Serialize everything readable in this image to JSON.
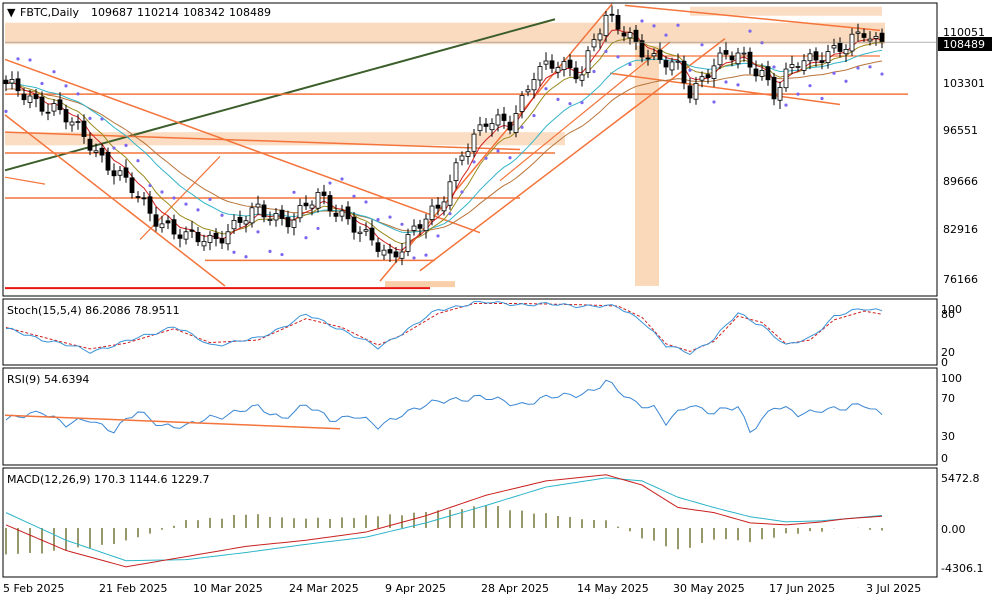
{
  "header": {
    "symbol": "FBTC,Daily",
    "open": "109687",
    "high": "110214",
    "low": "108342",
    "close": "108489"
  },
  "price_axis": {
    "ticks": [
      "110051",
      "103301",
      "96551",
      "89666",
      "82916",
      "76166"
    ],
    "current": "108489"
  },
  "stoch_panel": {
    "label": "Stoch(15,5,4) 86.2086 78.9511",
    "ticks": [
      "100",
      "80",
      "20",
      "0"
    ]
  },
  "rsi_panel": {
    "label": "RSI(9) 54.6394",
    "ticks": [
      "100",
      "70",
      "30",
      "0"
    ]
  },
  "macd_panel": {
    "label": "MACD(12,26,9) 170.3 1144.6 1229.7",
    "ticks": [
      "5472.8",
      "0.00",
      "-4306.1"
    ]
  },
  "time_axis": {
    "labels": [
      "5 Feb 2025",
      "21 Feb 2025",
      "10 Mar 2025",
      "24 Mar 2025",
      "9 Apr 2025",
      "28 Apr 2025",
      "14 May 2025",
      "30 May 2025",
      "17 Jun 2025",
      "3 Jul 2025"
    ]
  },
  "colors": {
    "bull": "#ffffff",
    "bear": "#000000",
    "zone": "#f9cfa9",
    "trend": "#f4743b",
    "red_trend": "#e8140f",
    "green_trend": "#3b5e2b",
    "psar": "#7b68ee",
    "ma_fast": "#d0201f",
    "ma_mid": "#9c8a1c",
    "ma_slow": "#b8743a",
    "ma_cyan": "#35b5c8",
    "stoch_main": "#3a93d8",
    "stoch_signal": "#d0201f",
    "rsi": "#3a86d3",
    "macd_line": "#c8201f",
    "macd_signal": "#2cb4c8",
    "macd_hist": "#6b6b2a"
  },
  "chart_data": [
    {
      "type": "candlestick",
      "title": "FBTC,Daily",
      "ylim": [
        72000,
        114000
      ],
      "anchors": [
        [
          0,
          102000
        ],
        [
          8,
          99000
        ],
        [
          14,
          94000
        ],
        [
          20,
          88000
        ],
        [
          24,
          84000
        ],
        [
          30,
          80000
        ],
        [
          34,
          80000
        ],
        [
          42,
          84000
        ],
        [
          48,
          83000
        ],
        [
          52,
          86000
        ],
        [
          56,
          84000
        ],
        [
          60,
          80000
        ],
        [
          64,
          77500
        ],
        [
          68,
          81500
        ],
        [
          72,
          84000
        ],
        [
          76,
          93000
        ],
        [
          80,
          96500
        ],
        [
          84,
          97000
        ],
        [
          88,
          104000
        ],
        [
          92,
          105000
        ],
        [
          96,
          104500
        ],
        [
          98,
          109000
        ],
        [
          100,
          111500
        ],
        [
          104,
          109500
        ],
        [
          108,
          106000
        ],
        [
          112,
          104500
        ],
        [
          114,
          101500
        ],
        [
          118,
          105500
        ],
        [
          122,
          106500
        ],
        [
          126,
          104500
        ],
        [
          128,
          101000
        ],
        [
          132,
          105500
        ],
        [
          136,
          107000
        ],
        [
          140,
          107500
        ],
        [
          143,
          110000
        ],
        [
          146,
          108489
        ]
      ]
    },
    {
      "type": "line",
      "title": "Stoch(15,5,4)",
      "ylim": [
        0,
        100
      ],
      "series": [
        {
          "name": "main",
          "anchors": [
            [
              0,
              55
            ],
            [
              8,
              35
            ],
            [
              14,
              20
            ],
            [
              20,
              35
            ],
            [
              28,
              60
            ],
            [
              34,
              30
            ],
            [
              42,
              40
            ],
            [
              50,
              78
            ],
            [
              56,
              55
            ],
            [
              62,
              25
            ],
            [
              66,
              50
            ],
            [
              72,
              85
            ],
            [
              78,
              98
            ],
            [
              86,
              95
            ],
            [
              96,
              93
            ],
            [
              102,
              90
            ],
            [
              106,
              70
            ],
            [
              110,
              28
            ],
            [
              114,
              18
            ],
            [
              118,
              40
            ],
            [
              122,
              80
            ],
            [
              126,
              62
            ],
            [
              130,
              28
            ],
            [
              134,
              42
            ],
            [
              138,
              75
            ],
            [
              143,
              88
            ],
            [
              146,
              86.2
            ]
          ]
        },
        {
          "name": "signal",
          "anchors": [
            [
              0,
              58
            ],
            [
              8,
              38
            ],
            [
              14,
              24
            ],
            [
              20,
              33
            ],
            [
              28,
              56
            ],
            [
              34,
              34
            ],
            [
              42,
              38
            ],
            [
              50,
              72
            ],
            [
              56,
              58
            ],
            [
              62,
              30
            ],
            [
              66,
              46
            ],
            [
              72,
              80
            ],
            [
              78,
              96
            ],
            [
              86,
              96
            ],
            [
              96,
              94
            ],
            [
              102,
              92
            ],
            [
              106,
              74
            ],
            [
              110,
              32
            ],
            [
              114,
              20
            ],
            [
              118,
              36
            ],
            [
              122,
              76
            ],
            [
              126,
              66
            ],
            [
              130,
              32
            ],
            [
              134,
              38
            ],
            [
              138,
              70
            ],
            [
              143,
              84
            ],
            [
              146,
              78.95
            ]
          ]
        }
      ]
    },
    {
      "type": "line",
      "title": "RSI(9)",
      "ylim": [
        0,
        100
      ],
      "series": [
        {
          "name": "RSI",
          "anchors": [
            [
              0,
              45
            ],
            [
              6,
              58
            ],
            [
              10,
              40
            ],
            [
              14,
              48
            ],
            [
              18,
              35
            ],
            [
              22,
              55
            ],
            [
              26,
              42
            ],
            [
              30,
              38
            ],
            [
              34,
              50
            ],
            [
              38,
              55
            ],
            [
              42,
              60
            ],
            [
              46,
              50
            ],
            [
              50,
              62
            ],
            [
              54,
              48
            ],
            [
              58,
              52
            ],
            [
              62,
              38
            ],
            [
              66,
              55
            ],
            [
              70,
              62
            ],
            [
              74,
              70
            ],
            [
              78,
              72
            ],
            [
              82,
              68
            ],
            [
              86,
              65
            ],
            [
              90,
              70
            ],
            [
              94,
              75
            ],
            [
              98,
              80
            ],
            [
              100,
              88
            ],
            [
              104,
              70
            ],
            [
              108,
              60
            ],
            [
              110,
              42
            ],
            [
              114,
              65
            ],
            [
              118,
              55
            ],
            [
              122,
              60
            ],
            [
              124,
              35
            ],
            [
              128,
              62
            ],
            [
              132,
              52
            ],
            [
              136,
              60
            ],
            [
              140,
              58
            ],
            [
              143,
              64
            ],
            [
              146,
              54.6
            ]
          ]
        }
      ]
    },
    {
      "type": "bar",
      "title": "MACD(12,26,9)",
      "ylim": [
        -4306.1,
        5472.8
      ],
      "series": [
        {
          "name": "macd",
          "anchors": [
            [
              0,
              300
            ],
            [
              10,
              -2200
            ],
            [
              20,
              -3800
            ],
            [
              30,
              -2800
            ],
            [
              40,
              -1800
            ],
            [
              50,
              -1200
            ],
            [
              60,
              -400
            ],
            [
              70,
              1200
            ],
            [
              80,
              3200
            ],
            [
              90,
              4600
            ],
            [
              100,
              5200
            ],
            [
              106,
              4200
            ],
            [
              112,
              2000
            ],
            [
              118,
              1500
            ],
            [
              124,
              500
            ],
            [
              130,
              300
            ],
            [
              136,
              600
            ],
            [
              140,
              900
            ],
            [
              146,
              1144.6
            ]
          ]
        },
        {
          "name": "signal",
          "anchors": [
            [
              0,
              1500
            ],
            [
              10,
              -1200
            ],
            [
              20,
              -3200
            ],
            [
              30,
              -3100
            ],
            [
              40,
              -2400
            ],
            [
              50,
              -1600
            ],
            [
              60,
              -900
            ],
            [
              70,
              500
            ],
            [
              80,
              2200
            ],
            [
              90,
              4000
            ],
            [
              100,
              4900
            ],
            [
              106,
              4600
            ],
            [
              112,
              3000
            ],
            [
              118,
              2000
            ],
            [
              124,
              1100
            ],
            [
              130,
              600
            ],
            [
              136,
              700
            ],
            [
              140,
              900
            ],
            [
              146,
              1229.7
            ]
          ]
        }
      ]
    }
  ]
}
